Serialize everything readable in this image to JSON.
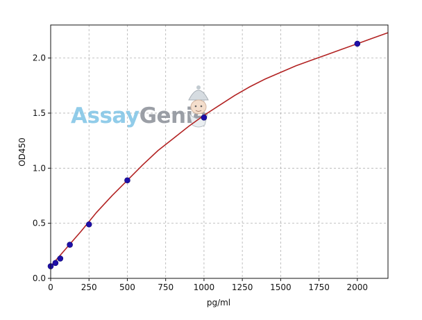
{
  "chart_data": {
    "type": "scatter",
    "xlabel": "pg/ml",
    "ylabel": "OD450",
    "xlim": [
      0,
      2200
    ],
    "ylim": [
      0,
      2.3
    ],
    "x_ticks": [
      0,
      250,
      500,
      750,
      1000,
      1250,
      1500,
      1750,
      2000
    ],
    "y_ticks": [
      0.0,
      0.5,
      1.0,
      1.5,
      2.0
    ],
    "x_tick_labels": [
      "0",
      "250",
      "500",
      "750",
      "1000",
      "1250",
      "1500",
      "1750",
      "2000"
    ],
    "y_tick_labels": [
      "0.0",
      "0.5",
      "1.0",
      "1.5",
      "2.0"
    ],
    "grid": true,
    "series": [
      {
        "kind": "points",
        "color": "#1f0fa8",
        "x": [
          0,
          31.25,
          62.5,
          125,
          250,
          500,
          1000,
          2000
        ],
        "y": [
          0.11,
          0.14,
          0.18,
          0.305,
          0.49,
          0.89,
          1.46,
          2.13
        ]
      },
      {
        "kind": "fit-curve",
        "color": "#b22222",
        "x": [
          0,
          100,
          200,
          300,
          400,
          500,
          600,
          700,
          800,
          900,
          1000,
          1100,
          1200,
          1300,
          1400,
          1500,
          1600,
          1700,
          1800,
          1900,
          2000,
          2100,
          2200
        ],
        "y": [
          0.11,
          0.27,
          0.43,
          0.6,
          0.75,
          0.89,
          1.03,
          1.16,
          1.27,
          1.38,
          1.48,
          1.57,
          1.66,
          1.74,
          1.81,
          1.87,
          1.93,
          1.98,
          2.03,
          2.08,
          2.13,
          2.18,
          2.23
        ]
      }
    ],
    "watermark": {
      "text_part1": "Assay",
      "text_part2": "Genie",
      "color_part1": "#7ec4e6",
      "color_part2": "#8a8f97"
    }
  }
}
